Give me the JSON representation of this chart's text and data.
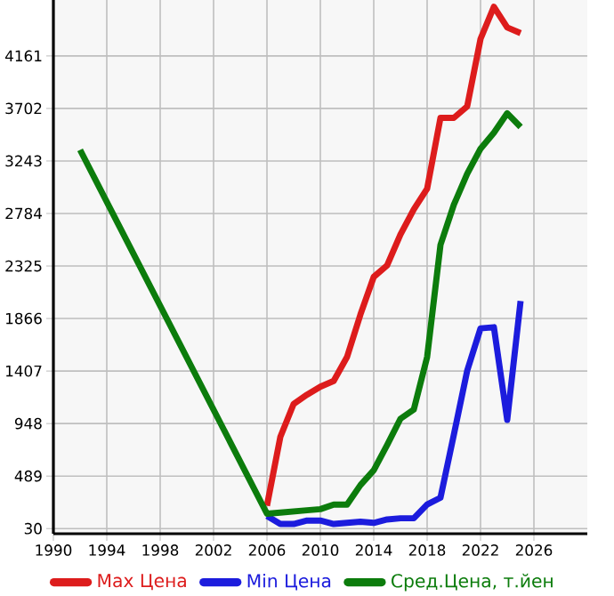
{
  "chart_data": {
    "type": "line",
    "xlim": [
      1990,
      2030
    ],
    "ylim": [
      -15,
      4650
    ],
    "xticks": [
      1990,
      1994,
      1998,
      2002,
      2006,
      2010,
      2014,
      2018,
      2022,
      2026
    ],
    "yticks": [
      30,
      489,
      948,
      1407,
      1866,
      2325,
      2784,
      3243,
      3702,
      4161
    ],
    "grid": true,
    "legend": "bottom",
    "line_style": "solid",
    "marker": "none",
    "series": [
      {
        "name": "Max Цена",
        "color": "#dd1c1c",
        "x": [
          2006,
          2007,
          2008,
          2009,
          2010,
          2011,
          2012,
          2013,
          2014,
          2015,
          2016,
          2017,
          2018,
          2019,
          2020,
          2021,
          2022,
          2023,
          2024,
          2025
        ],
        "values": [
          230,
          830,
          1120,
          1200,
          1270,
          1320,
          1530,
          1900,
          2230,
          2330,
          2600,
          2820,
          3000,
          3620,
          3620,
          3720,
          4310,
          4590,
          4410,
          4360
        ]
      },
      {
        "name": "Min Цена",
        "color": "#1c1cdd",
        "x": [
          2006,
          2007,
          2008,
          2009,
          2010,
          2011,
          2012,
          2013,
          2014,
          2015,
          2016,
          2017,
          2018,
          2019,
          2020,
          2021,
          2022,
          2023,
          2024,
          2025
        ],
        "values": [
          140,
          70,
          70,
          100,
          100,
          70,
          80,
          90,
          80,
          110,
          120,
          120,
          240,
          300,
          850,
          1410,
          1780,
          1790,
          980,
          2020
        ]
      },
      {
        "name": "Сред.Цена, т.йен",
        "color": "#0c7c0c",
        "x": [
          1992,
          2006,
          2007,
          2008,
          2009,
          2010,
          2011,
          2012,
          2013,
          2014,
          2015,
          2016,
          2017,
          2018,
          2019,
          2020,
          2021,
          2022,
          2023,
          2024,
          2025
        ],
        "values": [
          3340,
          160,
          170,
          180,
          190,
          200,
          240,
          240,
          410,
          540,
          760,
          990,
          1070,
          1530,
          2510,
          2860,
          3130,
          3350,
          3490,
          3660,
          3540
        ]
      }
    ]
  }
}
